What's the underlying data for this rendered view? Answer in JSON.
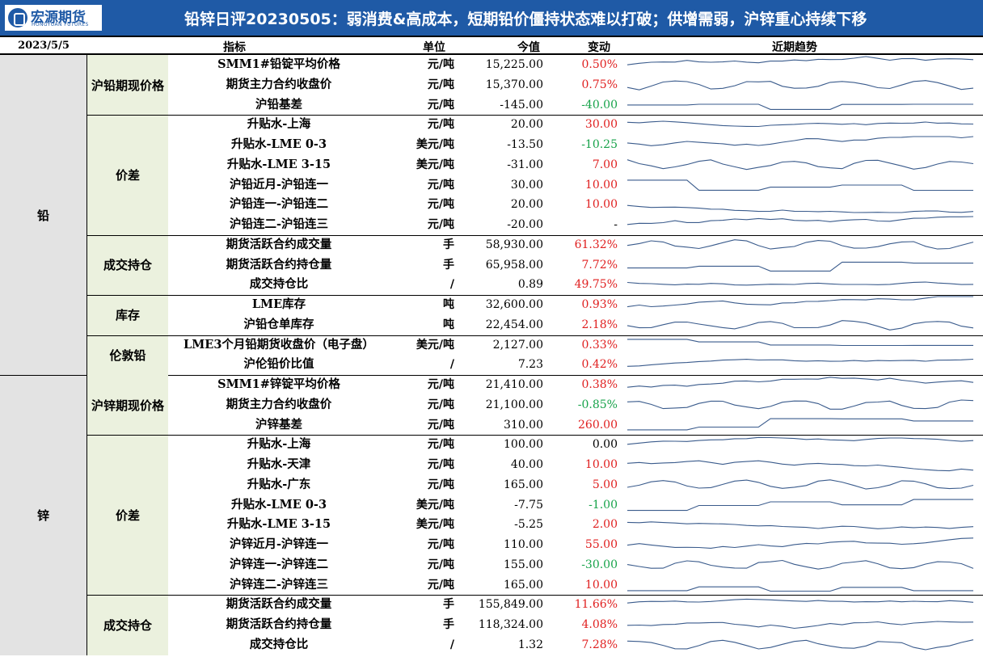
{
  "header": {
    "logo_cn": "宏源期货",
    "logo_en": "HONGYUAN FUTURES",
    "title": "铅锌日评20230505：弱消费&高成本，短期铅价僵持状态难以打破；供增需弱，沪锌重心持续下移"
  },
  "columns": {
    "date": "2023/5/5",
    "indicator": "指标",
    "unit": "单位",
    "value": "今值",
    "change": "变动",
    "trend": "近期趋势"
  },
  "colors": {
    "brand": "#1f5aa6",
    "up": "#e02020",
    "down": "#17a34a",
    "category_bg": "#e3e3e3",
    "group_bg": "#ebf1de",
    "sparkline": "#3a5b8c"
  },
  "sections": [
    {
      "name": "铅",
      "groups": [
        {
          "name": "沪铅期现价格",
          "rows": [
            {
              "indicator": "SMM1#铅锭平均价格",
              "unit": "元/吨",
              "value": "15,225.00",
              "change": "0.50%",
              "dir": "up"
            },
            {
              "indicator": "期货主力合约收盘价",
              "unit": "元/吨",
              "value": "15,370.00",
              "change": "0.75%",
              "dir": "up"
            },
            {
              "indicator": "沪铅基差",
              "unit": "元/吨",
              "value": "-145.00",
              "change": "-40.00",
              "dir": "down"
            }
          ]
        },
        {
          "name": "价差",
          "rows": [
            {
              "indicator": "升贴水-上海",
              "unit": "元/吨",
              "value": "20.00",
              "change": "30.00",
              "dir": "up"
            },
            {
              "indicator": "升贴水-LME 0-3",
              "unit": "美元/吨",
              "value": "-13.50",
              "change": "-10.25",
              "dir": "down"
            },
            {
              "indicator": "升贴水-LME 3-15",
              "unit": "美元/吨",
              "value": "-31.00",
              "change": "7.00",
              "dir": "up"
            },
            {
              "indicator": "沪铅近月-沪铅连一",
              "unit": "元/吨",
              "value": "30.00",
              "change": "10.00",
              "dir": "up"
            },
            {
              "indicator": "沪铅连一-沪铅连二",
              "unit": "元/吨",
              "value": "20.00",
              "change": "10.00",
              "dir": "up"
            },
            {
              "indicator": "沪铅连二-沪铅连三",
              "unit": "元/吨",
              "value": "-20.00",
              "change": "-",
              "dir": "zero"
            }
          ]
        },
        {
          "name": "成交持仓",
          "rows": [
            {
              "indicator": "期货活跃合约成交量",
              "unit": "手",
              "value": "58,930.00",
              "change": "61.32%",
              "dir": "up"
            },
            {
              "indicator": "期货活跃合约持仓量",
              "unit": "手",
              "value": "65,958.00",
              "change": "7.72%",
              "dir": "up"
            },
            {
              "indicator": "成交持仓比",
              "unit": "/",
              "value": "0.89",
              "change": "49.75%",
              "dir": "up"
            }
          ]
        },
        {
          "name": "库存",
          "rows": [
            {
              "indicator": "LME库存",
              "unit": "吨",
              "value": "32,600.00",
              "change": "0.93%",
              "dir": "up"
            },
            {
              "indicator": "沪铅仓单库存",
              "unit": "吨",
              "value": "22,454.00",
              "change": "2.18%",
              "dir": "up"
            }
          ]
        },
        {
          "name": "伦敦铅",
          "rows": [
            {
              "indicator": "LME3个月铅期货收盘价（电子盘）",
              "unit": "美元/吨",
              "value": "2,127.00",
              "change": "0.33%",
              "dir": "up"
            },
            {
              "indicator": "沪伦铅价比值",
              "unit": "/",
              "value": "7.23",
              "change": "0.42%",
              "dir": "up"
            }
          ]
        }
      ]
    },
    {
      "name": "锌",
      "groups": [
        {
          "name": "沪锌期现价格",
          "rows": [
            {
              "indicator": "SMM1#锌锭平均价格",
              "unit": "元/吨",
              "value": "21,410.00",
              "change": "0.38%",
              "dir": "up"
            },
            {
              "indicator": "期货主力合约收盘价",
              "unit": "元/吨",
              "value": "21,100.00",
              "change": "-0.85%",
              "dir": "down"
            },
            {
              "indicator": "沪锌基差",
              "unit": "元/吨",
              "value": "310.00",
              "change": "260.00",
              "dir": "up"
            }
          ]
        },
        {
          "name": "价差",
          "rows": [
            {
              "indicator": "升贴水-上海",
              "unit": "元/吨",
              "value": "100.00",
              "change": "0.00",
              "dir": "zero"
            },
            {
              "indicator": "升贴水-天津",
              "unit": "元/吨",
              "value": "40.00",
              "change": "10.00",
              "dir": "up"
            },
            {
              "indicator": "升贴水-广东",
              "unit": "元/吨",
              "value": "165.00",
              "change": "5.00",
              "dir": "up"
            },
            {
              "indicator": "升贴水-LME 0-3",
              "unit": "美元/吨",
              "value": "-7.75",
              "change": "-1.00",
              "dir": "down"
            },
            {
              "indicator": "升贴水-LME 3-15",
              "unit": "美元/吨",
              "value": "-5.25",
              "change": "2.00",
              "dir": "up"
            },
            {
              "indicator": "沪锌近月-沪锌连一",
              "unit": "元/吨",
              "value": "110.00",
              "change": "55.00",
              "dir": "up"
            },
            {
              "indicator": "沪锌连一-沪锌连二",
              "unit": "元/吨",
              "value": "155.00",
              "change": "-30.00",
              "dir": "down"
            },
            {
              "indicator": "沪锌连二-沪锌连三",
              "unit": "元/吨",
              "value": "165.00",
              "change": "10.00",
              "dir": "up"
            }
          ]
        },
        {
          "name": "成交持仓",
          "rows": [
            {
              "indicator": "期货活跃合约成交量",
              "unit": "手",
              "value": "155,849.00",
              "change": "11.66%",
              "dir": "up"
            },
            {
              "indicator": "期货活跃合约持仓量",
              "unit": "手",
              "value": "118,324.00",
              "change": "4.08%",
              "dir": "up"
            },
            {
              "indicator": "成交持仓比",
              "unit": "/",
              "value": "1.32",
              "change": "7.28%",
              "dir": "up"
            }
          ]
        }
      ]
    }
  ]
}
